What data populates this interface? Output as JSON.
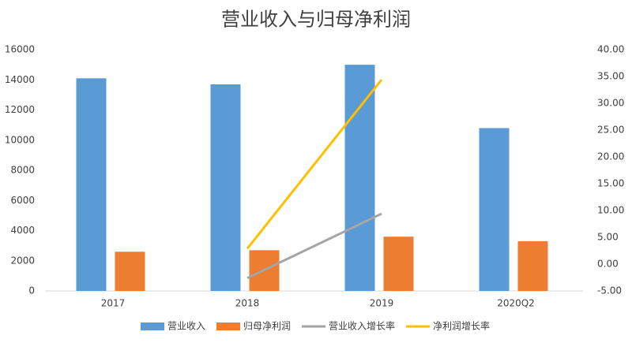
{
  "chart_data": {
    "type": "bar-line",
    "title": "营业收入与归母净利润",
    "categories": [
      "2017",
      "2018",
      "2019",
      "2020Q2"
    ],
    "series": [
      {
        "name": "营业收入",
        "type": "bar",
        "color": "#5b9bd5",
        "values": [
          14100,
          13700,
          15000,
          10800
        ]
      },
      {
        "name": "归母净利润",
        "type": "bar",
        "color": "#ed7d31",
        "values": [
          2600,
          2700,
          3600,
          3300
        ]
      },
      {
        "name": "营业收入增长率",
        "type": "line",
        "axis": "y2",
        "color": "#a5a5a5",
        "values": [
          null,
          -2.6,
          9.4,
          null
        ]
      },
      {
        "name": "净利润增长率",
        "type": "line",
        "axis": "y2",
        "color": "#ffc000",
        "values": [
          null,
          2.9,
          34.4,
          null
        ]
      }
    ],
    "ylim": [
      0,
      16000
    ],
    "yticks": [
      0,
      2000,
      4000,
      6000,
      8000,
      10000,
      12000,
      14000,
      16000
    ],
    "y2lim": [
      -5,
      40
    ],
    "y2ticks": [
      {
        "value": -5,
        "label": "-5.00"
      },
      {
        "value": 0,
        "label": "0.00"
      },
      {
        "value": 5,
        "label": "5.00"
      },
      {
        "value": 10,
        "label": "10.00"
      },
      {
        "value": 15,
        "label": "15.00"
      },
      {
        "value": 20,
        "label": "20.00"
      },
      {
        "value": 25,
        "label": "25.00"
      },
      {
        "value": 30,
        "label": "30.00"
      },
      {
        "value": 35,
        "label": "35.00"
      },
      {
        "value": 40,
        "label": "40.00"
      }
    ],
    "legend": "bottom"
  }
}
